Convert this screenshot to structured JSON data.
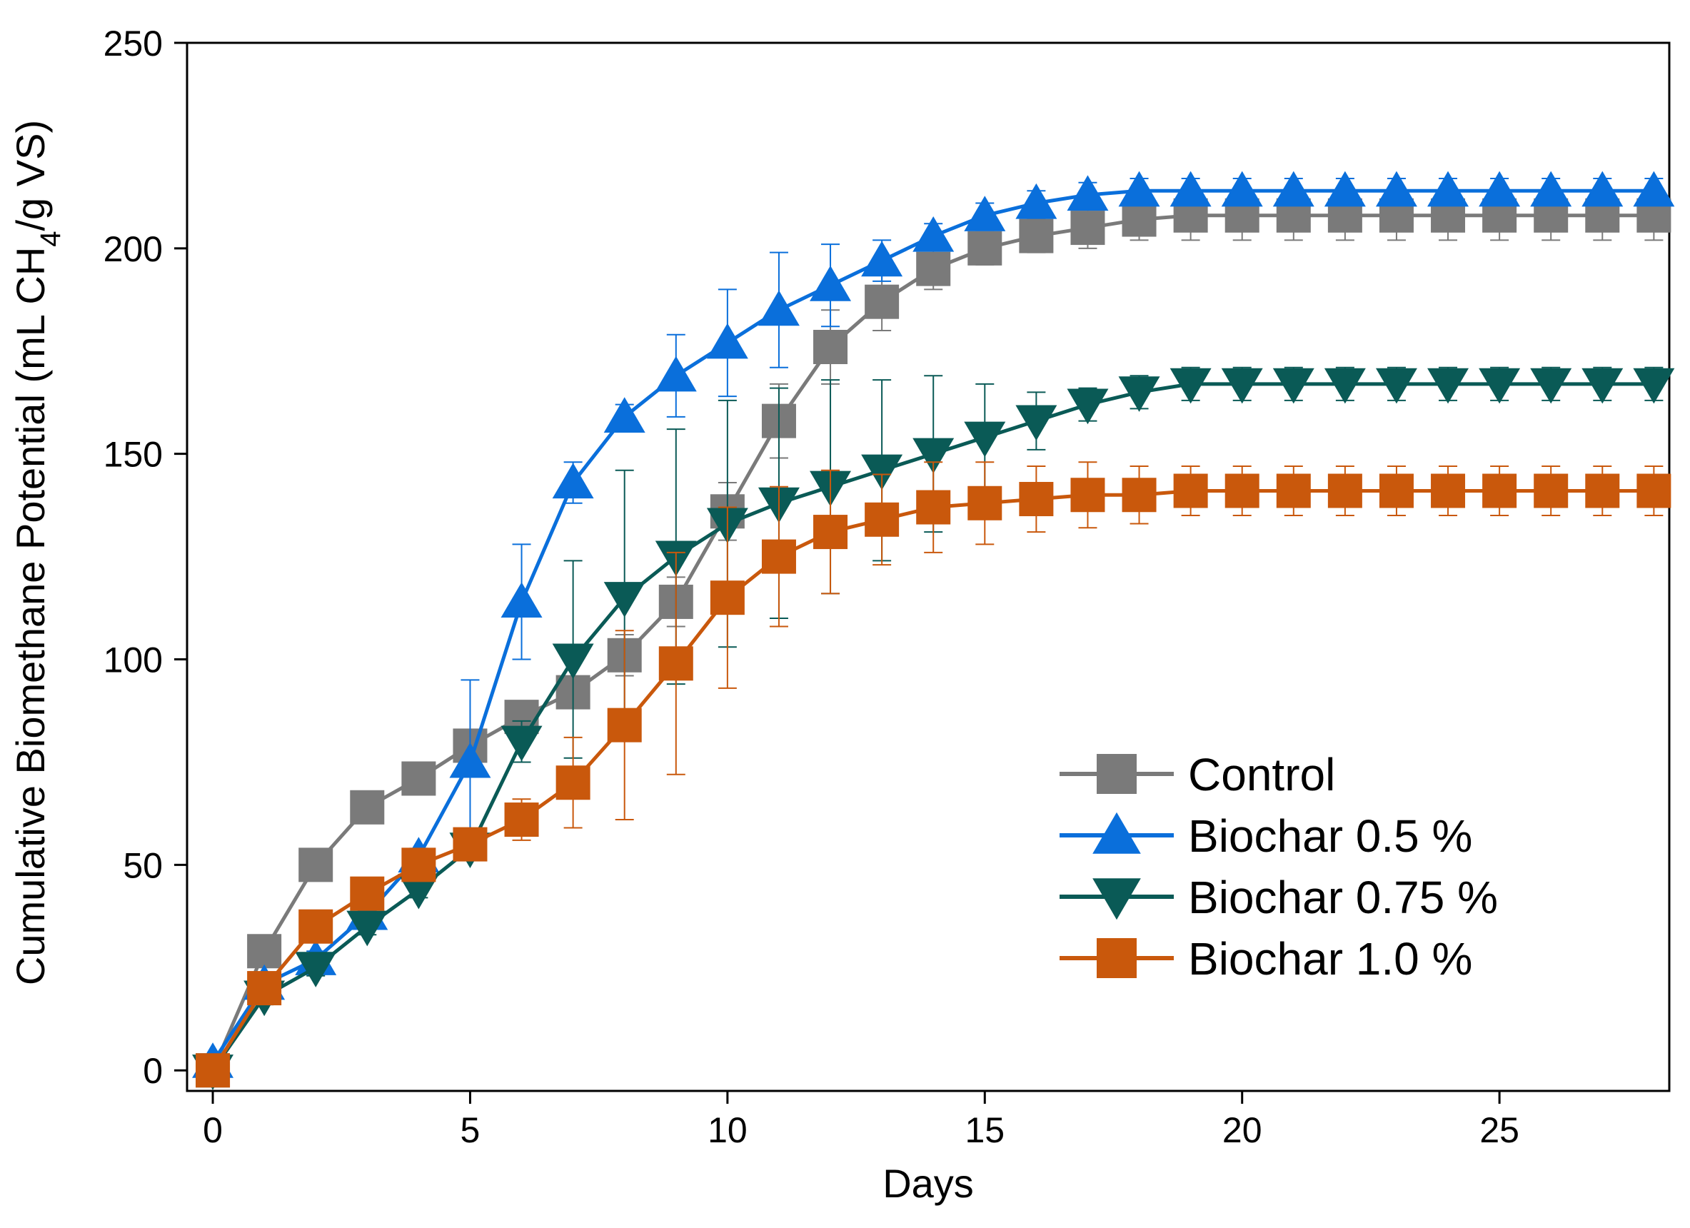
{
  "chart_data": {
    "type": "line",
    "xlabel": "Days",
    "ylabel_parts": [
      "Cumulative Biomethane Potential (mL CH",
      "4",
      "/g VS)"
    ],
    "xlim": [
      -0.5,
      28.3
    ],
    "ylim": [
      -5,
      250
    ],
    "xticks": [
      0,
      5,
      10,
      15,
      20,
      25
    ],
    "yticks": [
      0,
      50,
      100,
      150,
      200,
      250
    ],
    "grid": false,
    "legend_position": "bottom-right",
    "x": [
      0,
      1,
      2,
      3,
      4,
      5,
      6,
      7,
      8,
      9,
      10,
      11,
      12,
      13,
      14,
      15,
      16,
      17,
      18,
      19,
      20,
      21,
      22,
      23,
      24,
      25,
      26,
      27,
      28
    ],
    "series": [
      {
        "name": "Control",
        "color": "#7a7a7a",
        "marker": "square",
        "values": [
          0,
          29,
          50,
          64,
          71,
          79,
          86,
          92,
          101,
          114,
          136,
          158,
          176,
          187,
          195,
          200,
          203,
          205,
          207,
          208,
          208,
          208,
          208,
          208,
          208,
          208,
          208,
          208,
          208
        ],
        "errors": [
          0,
          2,
          2,
          2,
          2,
          3,
          3,
          3,
          5,
          6,
          7,
          9,
          9,
          7,
          5,
          4,
          4,
          5,
          5,
          6,
          6,
          6,
          6,
          6,
          6,
          6,
          6,
          6,
          6
        ]
      },
      {
        "name": "Biochar 0.5 %",
        "color": "#0a6fdb",
        "marker": "triangle-up",
        "values": [
          2,
          21,
          27,
          38,
          52,
          75,
          114,
          143,
          159,
          169,
          177,
          185,
          191,
          197,
          203,
          208,
          211,
          213,
          214,
          214,
          214,
          214,
          214,
          214,
          214,
          214,
          214,
          214,
          214
        ],
        "errors": [
          0,
          2,
          2,
          2,
          2,
          20,
          14,
          5,
          3,
          10,
          13,
          14,
          10,
          5,
          3,
          3,
          3,
          3,
          3,
          3,
          3,
          3,
          3,
          3,
          3,
          3,
          3,
          3,
          3
        ]
      },
      {
        "name": "Biochar 0.75 %",
        "color": "#0a5a56",
        "marker": "triangle-down",
        "values": [
          0,
          18,
          25,
          35,
          44,
          54,
          80,
          100,
          115,
          125,
          133,
          138,
          142,
          146,
          150,
          154,
          158,
          162,
          165,
          167,
          167,
          167,
          167,
          167,
          167,
          167,
          167,
          167,
          167
        ],
        "errors": [
          0,
          2,
          2,
          2,
          2,
          2,
          5,
          24,
          31,
          31,
          30,
          28,
          26,
          22,
          19,
          13,
          7,
          4,
          4,
          4,
          4,
          4,
          4,
          4,
          4,
          4,
          4,
          4,
          4
        ]
      },
      {
        "name": "Biochar 1.0 %",
        "color": "#c9580c",
        "marker": "square",
        "values": [
          0,
          20,
          35,
          43,
          50,
          55,
          61,
          70,
          84,
          99,
          115,
          125,
          131,
          134,
          137,
          138,
          139,
          140,
          140,
          141,
          141,
          141,
          141,
          141,
          141,
          141,
          141,
          141,
          141
        ],
        "errors": [
          0,
          2,
          2,
          2,
          2,
          2,
          5,
          11,
          23,
          27,
          22,
          17,
          15,
          11,
          11,
          10,
          8,
          8,
          7,
          6,
          6,
          6,
          6,
          6,
          6,
          6,
          6,
          6,
          6
        ]
      }
    ]
  }
}
